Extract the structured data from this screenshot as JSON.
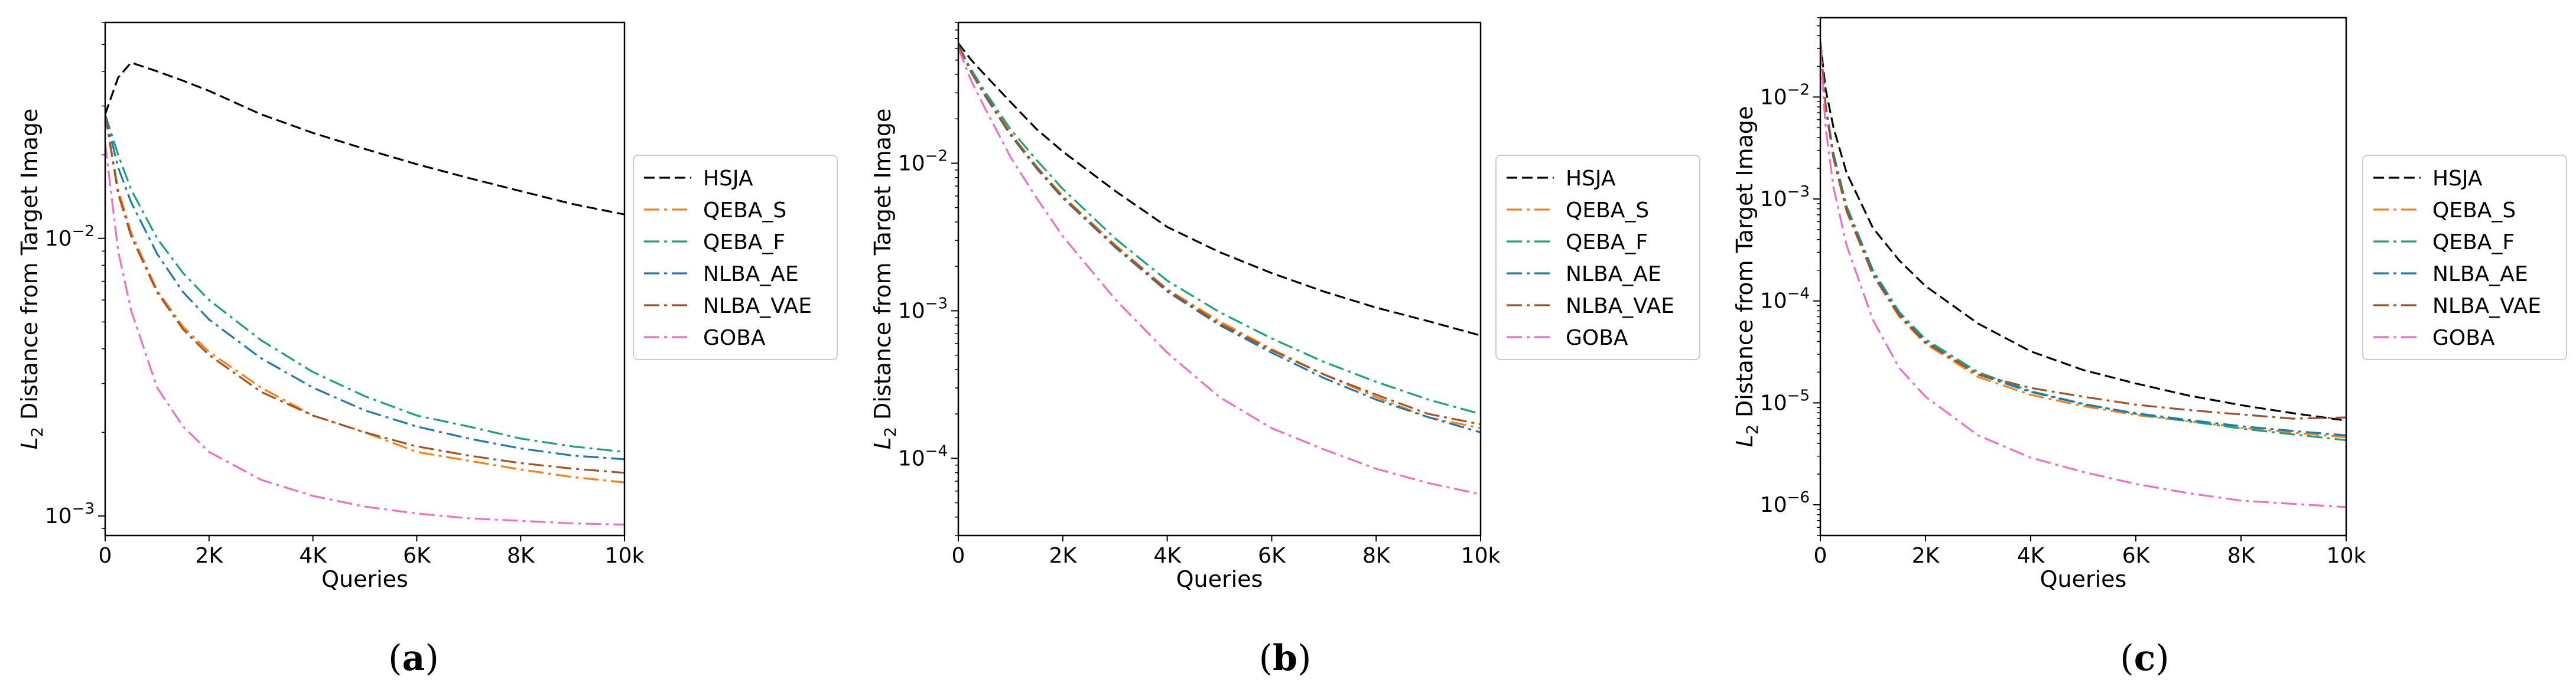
{
  "colors": {
    "HSJA": "#000000",
    "QEBA_S": "#ff7f0e",
    "QEBA_F": "#1aa37a",
    "NLBA_AE": "#1f77b4",
    "NLBA_VAE": "#a0522d",
    "GOBA": "#ee6ec8"
  },
  "chart_data": [
    {
      "type": "line",
      "panel_label": "a",
      "xlabel": "Queries",
      "ylabel_prefix": "L",
      "ylabel_sub": "2",
      "ylabel_rest": " Distance from Target Image",
      "yscale": "log",
      "xlim": [
        0,
        10000
      ],
      "ylim": [
        0.00085,
        0.06
      ],
      "xticks": [
        0,
        2000,
        4000,
        6000,
        8000,
        10000
      ],
      "xtick_labels": [
        "0",
        "2K",
        "4K",
        "6K",
        "8K",
        "10k"
      ],
      "yticks": [
        {
          "base": "10",
          "exp": "−2",
          "value": 0.01
        },
        {
          "base": "10",
          "exp": "−3",
          "value": 0.001
        }
      ],
      "legend_position": "outside-right",
      "x": [
        0,
        250,
        500,
        1000,
        1500,
        2000,
        3000,
        4000,
        5000,
        6000,
        7000,
        8000,
        9000,
        10000
      ],
      "series": [
        {
          "name": "HSJA",
          "values": [
            0.028,
            0.038,
            0.043,
            0.04,
            0.037,
            0.034,
            0.028,
            0.024,
            0.021,
            0.0185,
            0.0165,
            0.0148,
            0.0133,
            0.0122
          ]
        },
        {
          "name": "QEBA_S",
          "values": [
            0.028,
            0.015,
            0.0105,
            0.0065,
            0.0048,
            0.0039,
            0.0029,
            0.0023,
            0.002,
            0.0017,
            0.00158,
            0.00147,
            0.00138,
            0.00132
          ]
        },
        {
          "name": "QEBA_F",
          "values": [
            0.028,
            0.02,
            0.015,
            0.01,
            0.0075,
            0.006,
            0.0043,
            0.0033,
            0.0027,
            0.0023,
            0.0021,
            0.0019,
            0.00178,
            0.0017
          ]
        },
        {
          "name": "NLBA_AE",
          "values": [
            0.028,
            0.018,
            0.0135,
            0.0088,
            0.0064,
            0.0051,
            0.0037,
            0.0029,
            0.0024,
            0.0021,
            0.0019,
            0.00175,
            0.00165,
            0.0016
          ]
        },
        {
          "name": "NLBA_VAE",
          "values": [
            0.028,
            0.0145,
            0.0102,
            0.0064,
            0.0047,
            0.0038,
            0.0028,
            0.0023,
            0.002,
            0.00178,
            0.00165,
            0.00155,
            0.00148,
            0.00143
          ]
        },
        {
          "name": "GOBA",
          "values": [
            0.022,
            0.009,
            0.0055,
            0.0029,
            0.0021,
            0.0017,
            0.00135,
            0.00118,
            0.00108,
            0.00102,
            0.00098,
            0.00096,
            0.00094,
            0.00093
          ]
        }
      ]
    },
    {
      "type": "line",
      "panel_label": "b",
      "xlabel": "Queries",
      "ylabel_prefix": "L",
      "ylabel_sub": "2",
      "ylabel_rest": " Distance from Target Image",
      "yscale": "log",
      "xlim": [
        0,
        10000
      ],
      "ylim": [
        3e-05,
        0.09
      ],
      "xticks": [
        0,
        2000,
        4000,
        6000,
        8000,
        10000
      ],
      "xtick_labels": [
        "0",
        "2K",
        "4K",
        "6K",
        "8K",
        "10k"
      ],
      "yticks": [
        {
          "base": "10",
          "exp": "−2",
          "value": 0.01
        },
        {
          "base": "10",
          "exp": "−3",
          "value": 0.001
        },
        {
          "base": "10",
          "exp": "−4",
          "value": 0.0001
        }
      ],
      "legend_position": "outside-right",
      "x": [
        0,
        250,
        500,
        1000,
        1500,
        2000,
        3000,
        4000,
        5000,
        6000,
        7000,
        8000,
        9000,
        10000
      ],
      "series": [
        {
          "name": "HSJA",
          "values": [
            0.065,
            0.05,
            0.04,
            0.026,
            0.017,
            0.012,
            0.0065,
            0.0037,
            0.0025,
            0.0018,
            0.00135,
            0.00105,
            0.00085,
            0.00068
          ]
        },
        {
          "name": "QEBA_S",
          "values": [
            0.063,
            0.042,
            0.03,
            0.016,
            0.0095,
            0.006,
            0.0028,
            0.0014,
            0.00085,
            0.00055,
            0.00037,
            0.00026,
            0.00019,
            0.00016
          ]
        },
        {
          "name": "QEBA_F",
          "values": [
            0.063,
            0.043,
            0.031,
            0.017,
            0.0105,
            0.0067,
            0.0031,
            0.0016,
            0.00098,
            0.00065,
            0.00045,
            0.00033,
            0.00025,
            0.0002
          ]
        },
        {
          "name": "NLBA_AE",
          "values": [
            0.063,
            0.041,
            0.029,
            0.0155,
            0.0092,
            0.0058,
            0.0027,
            0.00135,
            0.0008,
            0.00052,
            0.00035,
            0.00025,
            0.00019,
            0.00015
          ]
        },
        {
          "name": "NLBA_VAE",
          "values": [
            0.063,
            0.041,
            0.0295,
            0.0158,
            0.0094,
            0.0059,
            0.00275,
            0.00138,
            0.00082,
            0.00054,
            0.00037,
            0.00027,
            0.0002,
            0.00017
          ]
        },
        {
          "name": "GOBA",
          "values": [
            0.06,
            0.036,
            0.024,
            0.011,
            0.0058,
            0.0032,
            0.0012,
            0.00052,
            0.00026,
            0.00016,
            0.000115,
            8.5e-05,
            6.8e-05,
            5.7e-05
          ]
        }
      ]
    },
    {
      "type": "line",
      "panel_label": "c",
      "xlabel": "Queries",
      "ylabel_prefix": "L",
      "ylabel_sub": "2",
      "ylabel_rest": " Distance from Target Image",
      "yscale": "log",
      "xlim": [
        0,
        10000
      ],
      "ylim": [
        5e-07,
        0.06
      ],
      "xticks": [
        0,
        2000,
        4000,
        6000,
        8000,
        10000
      ],
      "xtick_labels": [
        "0",
        "2K",
        "4K",
        "6K",
        "8K",
        "10k"
      ],
      "yticks": [
        {
          "base": "10",
          "exp": "−2",
          "value": 0.01
        },
        {
          "base": "10",
          "exp": "−3",
          "value": 0.001
        },
        {
          "base": "10",
          "exp": "−4",
          "value": 0.0001
        },
        {
          "base": "10",
          "exp": "−5",
          "value": 1e-05
        },
        {
          "base": "10",
          "exp": "−6",
          "value": 1e-06
        }
      ],
      "legend_position": "outside-right",
      "x": [
        0,
        100,
        250,
        500,
        1000,
        1500,
        2000,
        3000,
        4000,
        5000,
        6000,
        7000,
        8000,
        9000,
        10000
      ],
      "series": [
        {
          "name": "HSJA",
          "values": [
            0.035,
            0.012,
            0.005,
            0.0018,
            0.00052,
            0.00025,
            0.00014,
            6e-05,
            3.2e-05,
            2.1e-05,
            1.55e-05,
            1.18e-05,
            9.5e-06,
            7.9e-06,
            6.7e-06
          ]
        },
        {
          "name": "QEBA_S",
          "values": [
            0.035,
            0.008,
            0.0025,
            0.00075,
            0.00018,
            7e-05,
            3.8e-05,
            1.8e-05,
            1.2e-05,
            9.3e-06,
            7.6e-06,
            6.6e-06,
            5.7e-06,
            5.1e-06,
            4.6e-06
          ]
        },
        {
          "name": "QEBA_F",
          "values": [
            0.035,
            0.0085,
            0.0028,
            0.00085,
            0.0002,
            7.8e-05,
            4.2e-05,
            2e-05,
            1.3e-05,
            9.8e-06,
            7.8e-06,
            6.6e-06,
            5.6e-06,
            4.9e-06,
            4.3e-06
          ]
        },
        {
          "name": "NLBA_AE",
          "values": [
            0.035,
            0.0082,
            0.0026,
            0.0008,
            0.00019,
            7.4e-05,
            4e-05,
            1.9e-05,
            1.28e-05,
            9.7e-06,
            7.9e-06,
            6.8e-06,
            5.9e-06,
            5.3e-06,
            4.8e-06
          ]
        },
        {
          "name": "NLBA_VAE",
          "values": [
            0.035,
            0.008,
            0.0025,
            0.00077,
            0.00018,
            7.2e-05,
            3.9e-05,
            1.9e-05,
            1.4e-05,
            1.15e-05,
            9.6e-06,
            8.5e-06,
            7.7e-06,
            7e-06,
            7.2e-06
          ]
        },
        {
          "name": "GOBA",
          "values": [
            0.03,
            0.005,
            0.0013,
            0.00035,
            6.5e-05,
            2.2e-05,
            1.15e-05,
            4.8e-06,
            2.9e-06,
            2.1e-06,
            1.6e-06,
            1.3e-06,
            1.1e-06,
            1.02e-06,
            9.5e-07
          ]
        }
      ]
    }
  ]
}
